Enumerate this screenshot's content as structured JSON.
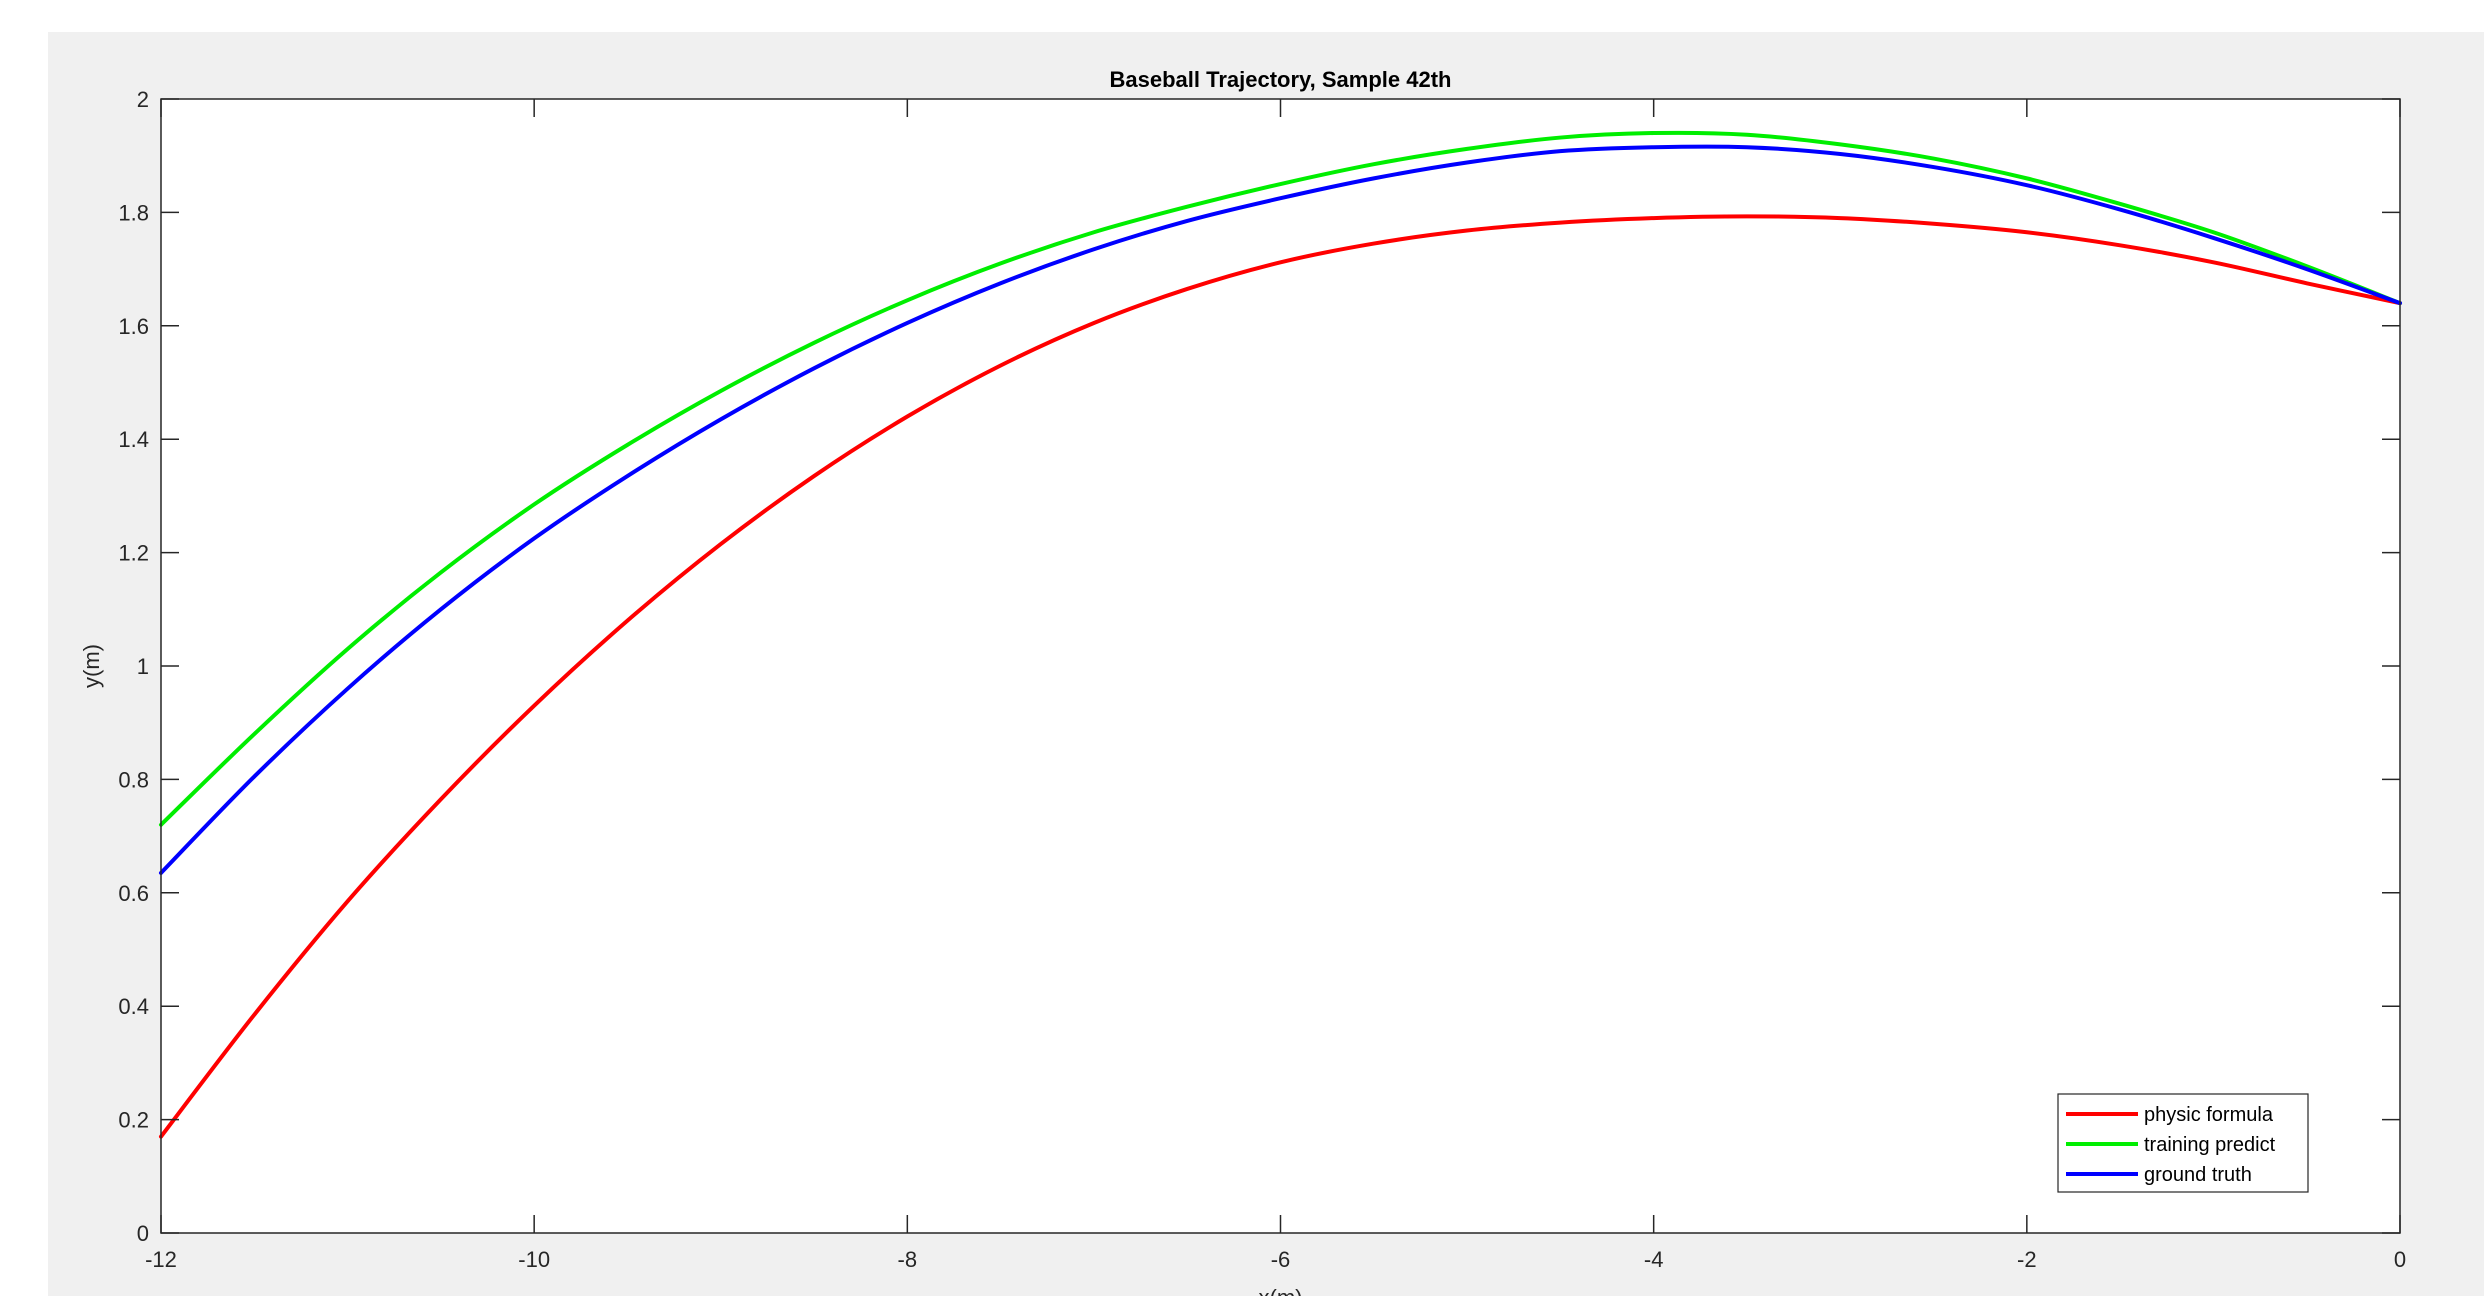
{
  "chart_data": {
    "type": "line",
    "title": "Baseball Trajectory, Sample 42th",
    "xlabel": "x(m)",
    "ylabel": "y(m)",
    "xlim": [
      -12,
      0
    ],
    "ylim": [
      0,
      2
    ],
    "xticks": [
      -12,
      -10,
      -8,
      -6,
      -4,
      -2,
      0
    ],
    "xtick_labels": [
      "-12",
      "-10",
      "-8",
      "-6",
      "-4",
      "-2",
      "0"
    ],
    "yticks": [
      0,
      0.2,
      0.4,
      0.6,
      0.8,
      1,
      1.2,
      1.4,
      1.6,
      1.8,
      2
    ],
    "ytick_labels": [
      "0",
      "0.2",
      "0.4",
      "0.6",
      "0.8",
      "1",
      "1.2",
      "1.4",
      "1.6",
      "1.8",
      "2"
    ],
    "grid": false,
    "legend_position": "bottom-right",
    "series": [
      {
        "name": "physic formula",
        "color": "#ff0000",
        "x": [
          -12,
          -11.5,
          -11,
          -10.5,
          -10,
          -9.5,
          -9,
          -8.5,
          -8,
          -7.5,
          -7,
          -6.5,
          -6,
          -5.5,
          -5,
          -4.5,
          -4,
          -3.5,
          -3,
          -2.5,
          -2,
          -1.5,
          -1,
          -0.5,
          0
        ],
        "y": [
          0.17,
          0.385,
          0.585,
          0.765,
          0.93,
          1.08,
          1.215,
          1.335,
          1.44,
          1.53,
          1.605,
          1.665,
          1.712,
          1.745,
          1.768,
          1.782,
          1.79,
          1.793,
          1.79,
          1.78,
          1.765,
          1.742,
          1.712,
          1.675,
          1.64
        ]
      },
      {
        "name": "training predict",
        "color": "#00ee00",
        "x": [
          -12,
          -11.5,
          -11,
          -10.5,
          -10,
          -9.5,
          -9,
          -8.5,
          -8,
          -7.5,
          -7,
          -6.5,
          -6,
          -5.5,
          -5,
          -4.5,
          -4,
          -3.5,
          -3,
          -2.5,
          -2,
          -1.5,
          -1,
          -0.5,
          0
        ],
        "y": [
          0.72,
          0.88,
          1.03,
          1.165,
          1.285,
          1.39,
          1.485,
          1.57,
          1.645,
          1.71,
          1.765,
          1.81,
          1.85,
          1.885,
          1.912,
          1.932,
          1.94,
          1.937,
          1.92,
          1.895,
          1.86,
          1.815,
          1.765,
          1.705,
          1.64
        ]
      },
      {
        "name": "ground truth",
        "color": "#0000ff",
        "x": [
          -12,
          -11.5,
          -11,
          -10.5,
          -10,
          -9.5,
          -9,
          -8.5,
          -8,
          -7.5,
          -7,
          -6.5,
          -6,
          -5.5,
          -5,
          -4.5,
          -4,
          -3.5,
          -3,
          -2.5,
          -2,
          -1.5,
          -1,
          -0.5,
          0
        ],
        "y": [
          0.635,
          0.805,
          0.96,
          1.1,
          1.225,
          1.335,
          1.435,
          1.525,
          1.605,
          1.675,
          1.735,
          1.785,
          1.825,
          1.86,
          1.888,
          1.908,
          1.915,
          1.915,
          1.903,
          1.88,
          1.848,
          1.805,
          1.755,
          1.7,
          1.64
        ]
      }
    ]
  }
}
